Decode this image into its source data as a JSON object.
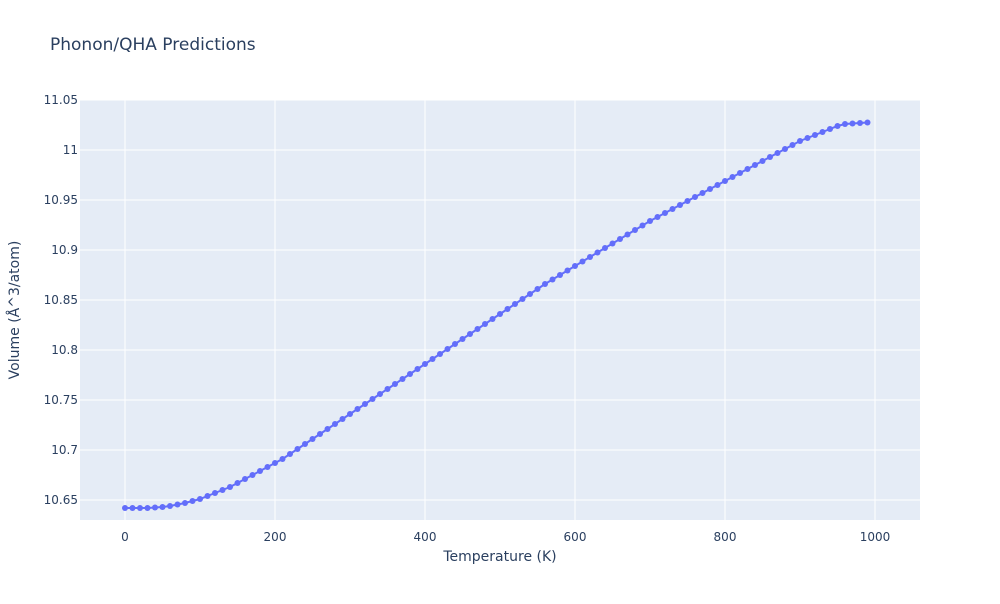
{
  "chart_data": {
    "type": "line",
    "title": "Phonon/QHA Predictions",
    "xlabel": "Temperature (K)",
    "ylabel": "Volume (Å^3/atom)",
    "xlim": [
      -60,
      1060
    ],
    "ylim": [
      10.63,
      11.05
    ],
    "x_ticks": [
      0,
      200,
      400,
      600,
      800,
      1000
    ],
    "x_tick_labels": [
      "0",
      "200",
      "400",
      "600",
      "800",
      "1000"
    ],
    "y_ticks": [
      10.65,
      10.7,
      10.75,
      10.8,
      10.85,
      10.9,
      10.95,
      11.0,
      11.05
    ],
    "y_tick_labels": [
      "10.65",
      "10.7",
      "10.75",
      "10.8",
      "10.85",
      "10.9",
      "10.95",
      "11",
      "11.05"
    ],
    "grid": true,
    "colors": {
      "series": "#636efa",
      "plot_bg": "#e5ecf6",
      "grid": "#ffffff",
      "text": "#2a3f5f"
    },
    "series": [
      {
        "x": [
          0,
          10,
          20,
          30,
          40,
          50,
          60,
          70,
          80,
          90,
          100,
          110,
          120,
          130,
          140,
          150,
          160,
          170,
          180,
          190,
          200,
          210,
          220,
          230,
          240,
          250,
          260,
          270,
          280,
          290,
          300,
          310,
          320,
          330,
          340,
          350,
          360,
          370,
          380,
          390,
          400,
          410,
          420,
          430,
          440,
          450,
          460,
          470,
          480,
          490,
          500,
          510,
          520,
          530,
          540,
          550,
          560,
          570,
          580,
          590,
          600,
          610,
          620,
          630,
          640,
          650,
          660,
          670,
          680,
          690,
          700,
          710,
          720,
          730,
          740,
          750,
          760,
          770,
          780,
          790,
          800,
          810,
          820,
          830,
          840,
          850,
          860,
          870,
          880,
          890,
          900,
          910,
          920,
          930,
          940,
          950,
          960,
          970,
          980,
          990
        ],
        "values": [
          10.642,
          10.642,
          10.642,
          10.642,
          10.6425,
          10.643,
          10.644,
          10.6455,
          10.647,
          10.649,
          10.651,
          10.654,
          10.657,
          10.66,
          10.663,
          10.667,
          10.671,
          10.675,
          10.679,
          10.683,
          10.687,
          10.691,
          10.696,
          10.701,
          10.706,
          10.711,
          10.716,
          10.721,
          10.726,
          10.731,
          10.736,
          10.741,
          10.746,
          10.751,
          10.756,
          10.761,
          10.766,
          10.771,
          10.776,
          10.781,
          10.786,
          10.791,
          10.796,
          10.801,
          10.806,
          10.811,
          10.816,
          10.821,
          10.826,
          10.831,
          10.836,
          10.841,
          10.846,
          10.851,
          10.856,
          10.861,
          10.866,
          10.8705,
          10.875,
          10.8795,
          10.884,
          10.8885,
          10.893,
          10.8975,
          10.902,
          10.9065,
          10.911,
          10.9155,
          10.92,
          10.9245,
          10.929,
          10.933,
          10.937,
          10.941,
          10.945,
          10.949,
          10.953,
          10.957,
          10.961,
          10.965,
          10.969,
          10.973,
          10.977,
          10.981,
          10.985,
          10.989,
          10.993,
          10.997,
          11.001,
          11.005,
          11.009,
          11.012,
          11.015,
          11.018,
          11.021,
          11.024,
          11.026,
          11.0265,
          11.027,
          11.0275
        ]
      }
    ]
  }
}
